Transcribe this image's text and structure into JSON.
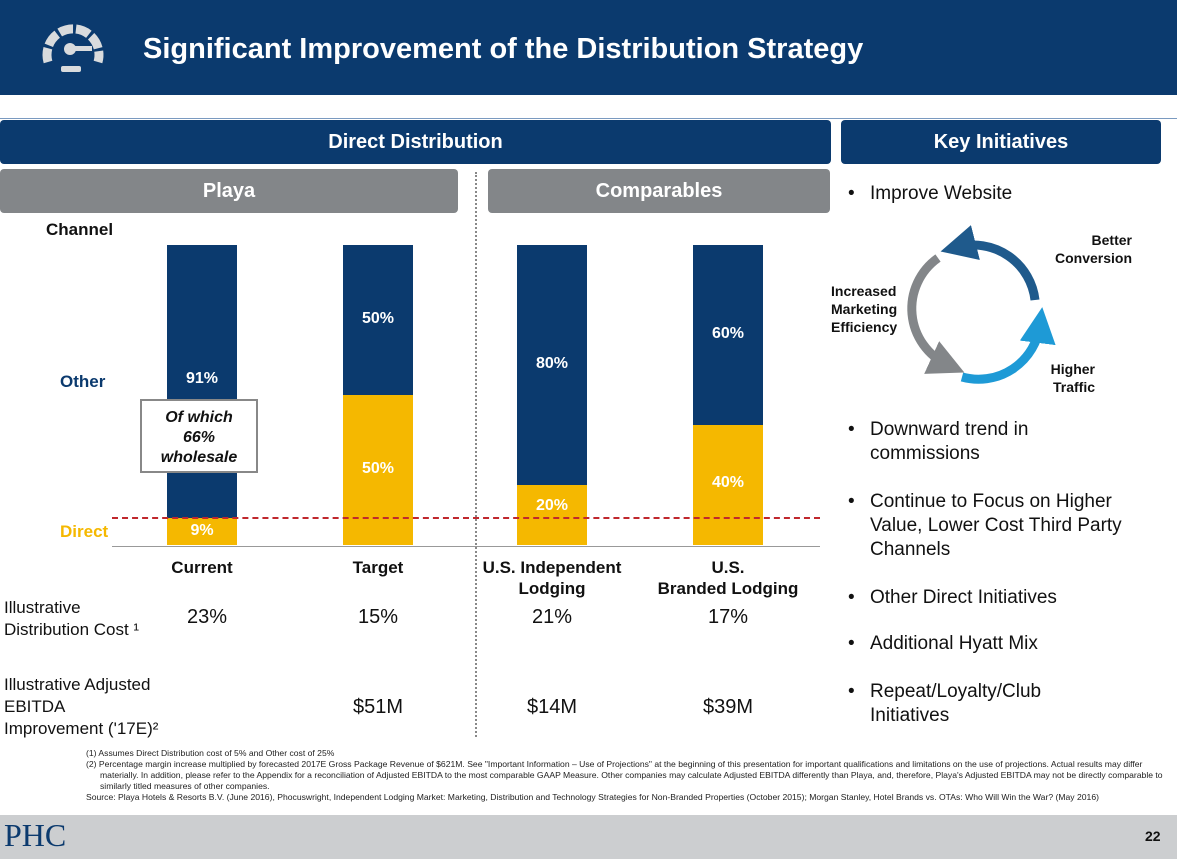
{
  "header": {
    "title": "Significant Improvement of the Distribution Strategy",
    "icon": "speedometer-icon"
  },
  "sections": {
    "direct": "Direct Distribution",
    "key": "Key Initiatives",
    "playa": "Playa",
    "comparables": "Comparables"
  },
  "labels": {
    "channel": "Channel",
    "other": "Other",
    "direct": "Direct",
    "callout": [
      "Of which",
      "66%",
      "wholesale"
    ]
  },
  "rows": {
    "cost_label": [
      "Illustrative",
      "Distribution Cost ¹"
    ],
    "ebitda_label": [
      "Illustrative Adjusted",
      "EBITDA",
      "Improvement ('17E)²"
    ]
  },
  "colors": {
    "navy": "#0b3a6e",
    "yellow": "#f5b800",
    "grey": "#838689",
    "red": "#c0282d"
  },
  "chart_data": {
    "type": "bar",
    "stacked": true,
    "categories": [
      "Current",
      "Target",
      "U.S. Independent Lodging",
      "U.S. Branded Lodging"
    ],
    "category_lines": [
      [
        "Current"
      ],
      [
        "Target"
      ],
      [
        "U.S. Independent",
        "Lodging"
      ],
      [
        "U.S.",
        "Branded Lodging"
      ]
    ],
    "series": [
      {
        "name": "Direct",
        "values": [
          9,
          50,
          20,
          40
        ]
      },
      {
        "name": "Other",
        "values": [
          91,
          50,
          80,
          60
        ]
      }
    ],
    "data_labels": {
      "Direct": [
        "9%",
        "50%",
        "20%",
        "40%"
      ],
      "Other": [
        "91%",
        "50%",
        "80%",
        "60%"
      ]
    },
    "ylim": [
      0,
      100
    ],
    "reference_line": {
      "value": 9,
      "style": "dashed"
    },
    "cost": [
      "23%",
      "15%",
      "21%",
      "17%"
    ],
    "ebitda": [
      "",
      "$51M",
      "$14M",
      "$39M"
    ]
  },
  "initiatives": [
    "Improve Website",
    "Downward trend in commissions",
    "Continue to Focus on Higher Value, Lower Cost Third Party Channels",
    "Other Direct Initiatives",
    "Additional Hyatt Mix",
    "Repeat/Loyalty/Club Initiatives"
  ],
  "cycle": {
    "top": [
      "Better",
      "Conversion"
    ],
    "left": [
      "Increased",
      "Marketing",
      "Efficiency"
    ],
    "bottom": [
      "Higher",
      "Traffic"
    ]
  },
  "footnotes": {
    "f1": "(1)  Assumes Direct Distribution cost of 5% and Other cost of 25%",
    "f2": "(2)  Percentage margin increase multiplied by forecasted 2017E Gross Package Revenue of $621M. See \"Important Information – Use of Projections\" at the beginning of this presentation for important qualifications and limitations on the use of projections. Actual results may differ materially. In addition, please refer to the Appendix for a reconciliation of Adjusted EBITDA to the most comparable GAAP Measure. Other companies may calculate Adjusted EBITDA differently than Playa, and, therefore, Playa's Adjusted EBITDA may not be directly comparable to similarly titled measures of other companies.",
    "source": "Source: Playa Hotels & Resorts B.V. (June 2016), Phocuswright, Independent Lodging Market: Marketing, Distribution and Technology Strategies for Non-Branded Properties (October 2015); Morgan Stanley, Hotel Brands vs. OTAs: Who Will Win the War? (May 2016)"
  },
  "footer": {
    "logo": "PHC",
    "page": "22"
  }
}
